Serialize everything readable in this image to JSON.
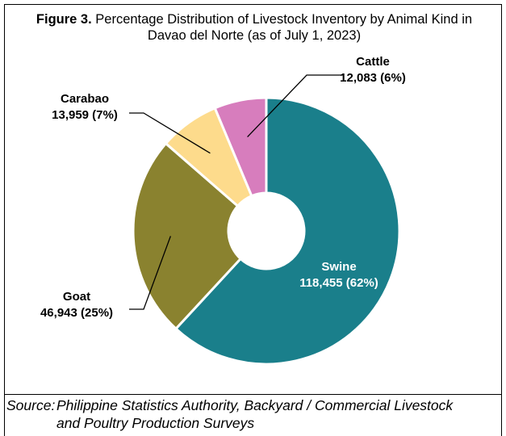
{
  "chart_data": {
    "type": "pie",
    "title_label": "Figure 3.",
    "title": "Percentage Distribution of Livestock Inventory by Animal Kind in Davao del Norte (as of July 1, 2023)",
    "categories": [
      "Swine",
      "Goat",
      "Carabao",
      "Cattle"
    ],
    "values": [
      118455,
      46943,
      13959,
      12083
    ],
    "value_labels": [
      "118,455 (62%)",
      "46,943 (25%)",
      "13,959 (7%)",
      "12,083 (6%)"
    ],
    "colors": [
      "#1a7f8b",
      "#8a822f",
      "#fddb8c",
      "#d77dbd"
    ],
    "donut": true,
    "source_label": "Source:",
    "source": "Philippine Statistics Authority, Backyard / Commercial Livestock and Poultry Production Surveys"
  }
}
